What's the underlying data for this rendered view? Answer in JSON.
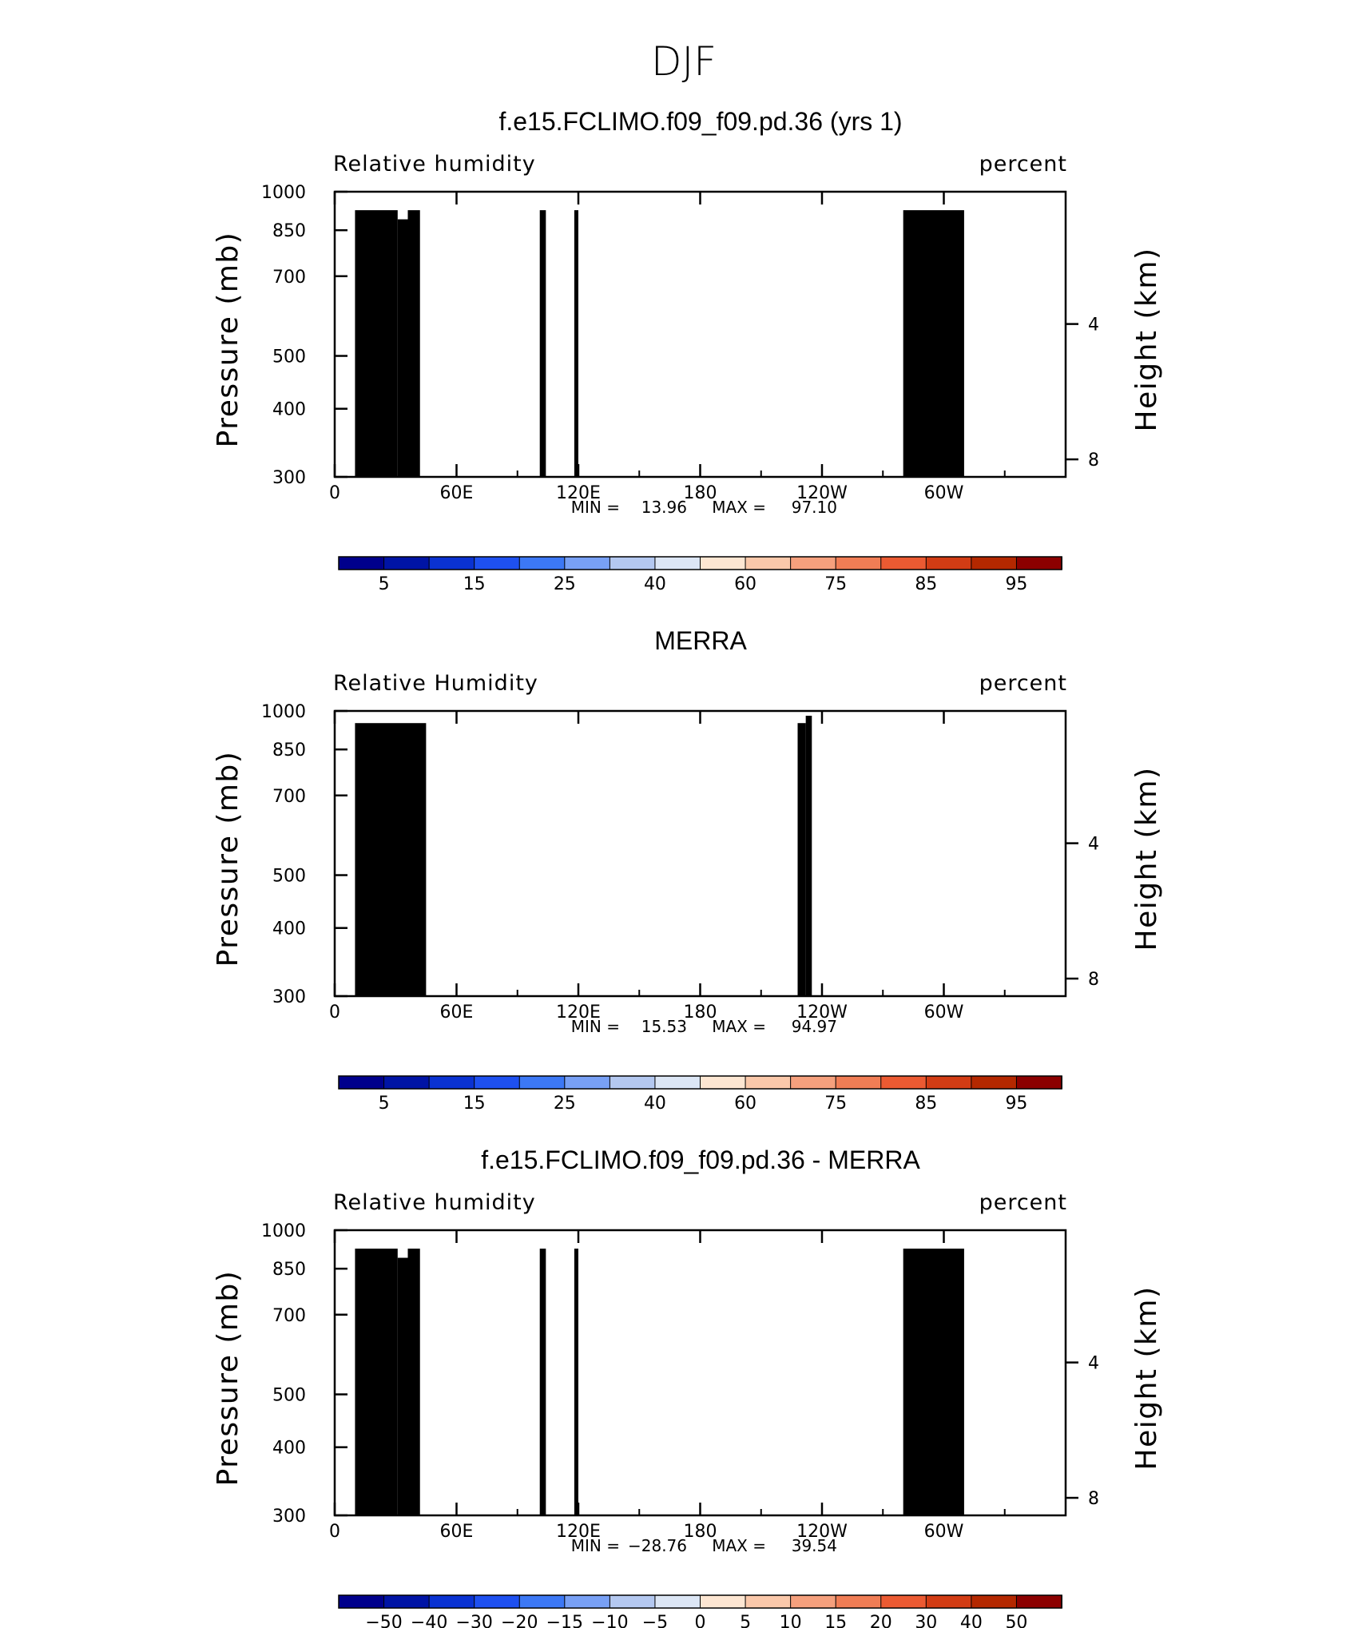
{
  "figure": {
    "suptitle": "DJF"
  },
  "colors": {
    "absolute": [
      "#00008c",
      "#0014a5",
      "#0a32d2",
      "#1e50f0",
      "#3c78f5",
      "#78a0f5",
      "#b4c8f0",
      "#dce6f5",
      "#fde6d2",
      "#fac8aa",
      "#f5a07d",
      "#f07d55",
      "#eb5a32",
      "#d23c14",
      "#b42800",
      "#8c0000"
    ],
    "difference": [
      "#00008c",
      "#0014a5",
      "#0a32d2",
      "#1e50f0",
      "#3c78f5",
      "#78a0f5",
      "#b4c8f0",
      "#dce6f5",
      "#fde6d2",
      "#fac8aa",
      "#f5a07d",
      "#f07d55",
      "#eb5a32",
      "#d23c14",
      "#b42800",
      "#8c0000"
    ],
    "topography": "#000000"
  },
  "chart_data": [
    {
      "type": "heatmap",
      "title": "f.e15.FCLIMO.f09_f09.pd.36 (yrs 1)",
      "variable_label": "Relative humidity",
      "units_label": "percent",
      "ylabel": "Pressure (mb)",
      "ylabel_right": "Height (km)",
      "x_ticks": [
        "0",
        "60E",
        "120E",
        "180",
        "120W",
        "60W"
      ],
      "y_ticks": [
        "300",
        "400",
        "500",
        "700",
        "850",
        "1000"
      ],
      "y_ticks_right": [
        "8",
        "4"
      ],
      "xlim": [
        0,
        360
      ],
      "ylim": [
        1000,
        300
      ],
      "min_label": "MIN =",
      "min_value": "13.96",
      "max_label": "MAX =",
      "max_value": "97.10",
      "colorbar_levels": [
        5,
        10,
        15,
        20,
        25,
        30,
        40,
        50,
        60,
        70,
        75,
        80,
        85,
        90,
        95
      ],
      "colorbar_labels": [
        "5",
        "15",
        "25",
        "40",
        "60",
        "75",
        "85",
        "95"
      ],
      "mode": "model"
    },
    {
      "type": "heatmap",
      "title": "MERRA",
      "variable_label": "Relative Humidity",
      "units_label": "percent",
      "ylabel": "Pressure (mb)",
      "ylabel_right": "Height (km)",
      "x_ticks": [
        "0",
        "60E",
        "120E",
        "180",
        "120W",
        "60W"
      ],
      "y_ticks": [
        "300",
        "400",
        "500",
        "700",
        "850",
        "1000"
      ],
      "y_ticks_right": [
        "8",
        "4"
      ],
      "xlim": [
        0,
        360
      ],
      "ylim": [
        1000,
        300
      ],
      "min_label": "MIN =",
      "min_value": "15.53",
      "max_label": "MAX =",
      "max_value": "94.97",
      "colorbar_levels": [
        5,
        10,
        15,
        20,
        25,
        30,
        40,
        50,
        60,
        70,
        75,
        80,
        85,
        90,
        95
      ],
      "colorbar_labels": [
        "5",
        "15",
        "25",
        "40",
        "60",
        "75",
        "85",
        "95"
      ],
      "mode": "obs"
    },
    {
      "type": "heatmap",
      "title": "f.e15.FCLIMO.f09_f09.pd.36 - MERRA",
      "variable_label": "Relative humidity",
      "units_label": "percent",
      "ylabel": "Pressure (mb)",
      "ylabel_right": "Height (km)",
      "x_ticks": [
        "0",
        "60E",
        "120E",
        "180",
        "120W",
        "60W"
      ],
      "y_ticks": [
        "300",
        "400",
        "500",
        "700",
        "850",
        "1000"
      ],
      "y_ticks_right": [
        "8",
        "4"
      ],
      "xlim": [
        0,
        360
      ],
      "ylim": [
        1000,
        300
      ],
      "min_label": "MIN =",
      "min_value": "−28.76",
      "max_label": "MAX =",
      "max_value": "39.54",
      "colorbar_levels": [
        -50,
        -40,
        -30,
        -20,
        -15,
        -10,
        -5,
        0,
        5,
        10,
        15,
        20,
        30,
        40,
        50
      ],
      "colorbar_labels": [
        "−50",
        "−40",
        "−30",
        "−20",
        "−15",
        "−10",
        "−5",
        "0",
        "5",
        "10",
        "15",
        "20",
        "30",
        "40",
        "50"
      ],
      "mode": "diff"
    }
  ]
}
